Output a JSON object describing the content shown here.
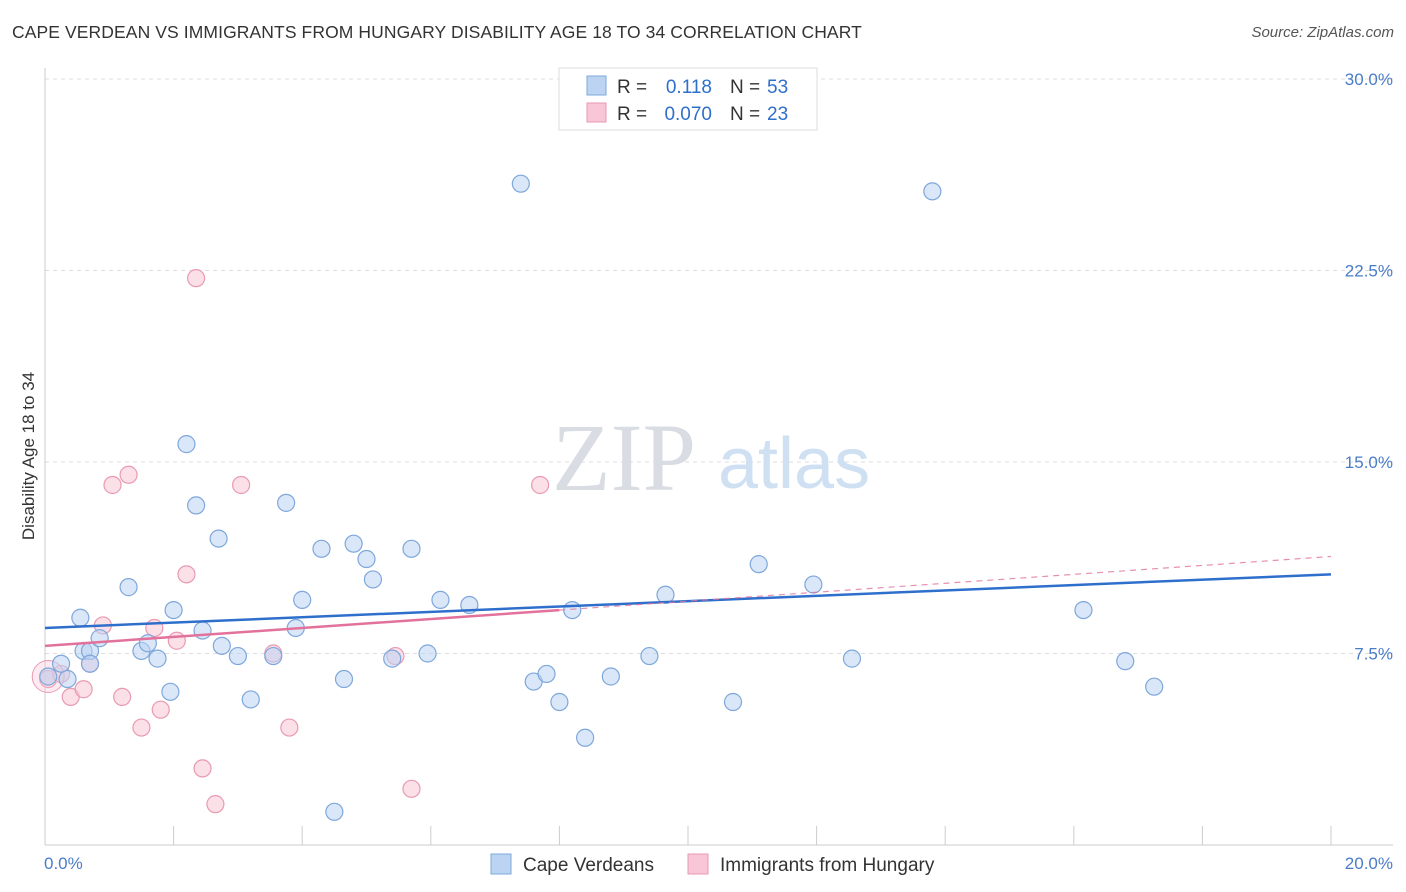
{
  "title": "CAPE VERDEAN VS IMMIGRANTS FROM HUNGARY DISABILITY AGE 18 TO 34 CORRELATION CHART",
  "source": "Source: ZipAtlas.com",
  "watermark": {
    "zip": "ZIP",
    "atlas": "atlas"
  },
  "colors": {
    "blue_fill": "#bcd4f2",
    "blue_stroke": "#7ea7db",
    "blue_line": "#2f6fcc",
    "pink_fill": "#f8c6d6",
    "pink_stroke": "#e99ab3",
    "pink_line": "#e2729b",
    "tick_text": "#4a7cc7",
    "grid": "#dddddd"
  },
  "legend": {
    "rows": [
      {
        "r_label": "R =",
        "r_value": "0.118",
        "n_label": "N =",
        "n_value": "53"
      },
      {
        "r_label": "R =",
        "r_value": "0.070",
        "n_label": "N =",
        "n_value": "23"
      }
    ]
  },
  "bottom_legend": [
    "Cape Verdeans",
    "Immigrants from Hungary"
  ],
  "chart_data": {
    "type": "scatter",
    "xlabel": "",
    "ylabel": "Disability Age 18 to 34",
    "xlim": [
      0,
      20
    ],
    "ylim": [
      0,
      30
    ],
    "x_tick_labels": [
      "0.0%",
      "20.0%"
    ],
    "y_ticks": [
      7.5,
      15.0,
      22.5,
      30.0
    ],
    "y_tick_labels": [
      "7.5%",
      "15.0%",
      "22.5%",
      "30.0%"
    ],
    "grid": "horizontal dashed",
    "legend_position": "top-center",
    "series": [
      {
        "name": "Cape Verdeans",
        "points": [
          [
            0.05,
            6.6
          ],
          [
            0.25,
            7.1
          ],
          [
            0.35,
            6.5
          ],
          [
            0.55,
            8.9
          ],
          [
            0.6,
            7.6
          ],
          [
            0.7,
            7.6
          ],
          [
            0.7,
            7.1
          ],
          [
            0.85,
            8.1
          ],
          [
            1.3,
            10.1
          ],
          [
            1.5,
            7.6
          ],
          [
            1.6,
            7.9
          ],
          [
            1.75,
            7.3
          ],
          [
            1.95,
            6.0
          ],
          [
            2.0,
            9.2
          ],
          [
            2.2,
            15.7
          ],
          [
            2.35,
            13.3
          ],
          [
            2.45,
            8.4
          ],
          [
            2.7,
            12.0
          ],
          [
            2.75,
            7.8
          ],
          [
            3.0,
            7.4
          ],
          [
            3.2,
            5.7
          ],
          [
            3.55,
            7.4
          ],
          [
            3.75,
            13.4
          ],
          [
            3.9,
            8.5
          ],
          [
            4.0,
            9.6
          ],
          [
            4.3,
            11.6
          ],
          [
            4.5,
            1.3
          ],
          [
            4.65,
            6.5
          ],
          [
            4.8,
            11.8
          ],
          [
            5.0,
            11.2
          ],
          [
            5.1,
            10.4
          ],
          [
            5.4,
            7.3
          ],
          [
            5.7,
            11.6
          ],
          [
            5.95,
            7.5
          ],
          [
            6.15,
            9.6
          ],
          [
            6.6,
            9.4
          ],
          [
            7.4,
            25.9
          ],
          [
            7.6,
            6.4
          ],
          [
            7.8,
            6.7
          ],
          [
            8.0,
            5.6
          ],
          [
            8.2,
            9.2
          ],
          [
            8.4,
            4.2
          ],
          [
            8.8,
            6.6
          ],
          [
            9.4,
            7.4
          ],
          [
            9.65,
            9.8
          ],
          [
            10.7,
            5.6
          ],
          [
            11.1,
            11.0
          ],
          [
            11.95,
            10.2
          ],
          [
            12.55,
            7.3
          ],
          [
            13.8,
            25.6
          ],
          [
            16.15,
            9.2
          ],
          [
            16.8,
            7.2
          ],
          [
            17.25,
            6.2
          ]
        ],
        "trend": {
          "x": [
            0,
            20
          ],
          "y": [
            8.5,
            10.6
          ]
        }
      },
      {
        "name": "Immigrants from Hungary",
        "points": [
          [
            0.05,
            6.5
          ],
          [
            0.25,
            6.7
          ],
          [
            0.4,
            5.8
          ],
          [
            0.6,
            6.1
          ],
          [
            0.7,
            7.1
          ],
          [
            0.9,
            8.6
          ],
          [
            1.05,
            14.1
          ],
          [
            1.2,
            5.8
          ],
          [
            1.3,
            14.5
          ],
          [
            1.5,
            4.6
          ],
          [
            1.7,
            8.5
          ],
          [
            1.8,
            5.3
          ],
          [
            2.05,
            8.0
          ],
          [
            2.2,
            10.6
          ],
          [
            2.35,
            22.2
          ],
          [
            2.45,
            3.0
          ],
          [
            2.65,
            1.6
          ],
          [
            3.05,
            14.1
          ],
          [
            3.55,
            7.5
          ],
          [
            3.8,
            4.6
          ],
          [
            5.45,
            7.4
          ],
          [
            5.7,
            2.2
          ],
          [
            7.7,
            14.1
          ]
        ],
        "trend": {
          "x": [
            0,
            20
          ],
          "y": [
            7.8,
            11.3
          ]
        },
        "trend_solid_until_x": 8.0
      }
    ]
  }
}
